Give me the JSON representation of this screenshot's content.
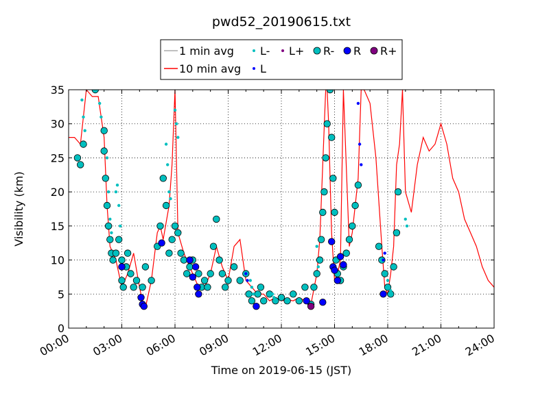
{
  "chart_data": {
    "type": "line",
    "title": "pwd52_20190615.txt",
    "xlabel": "Time on 2019-06-15 (JST)",
    "ylabel": "Visibility (km)",
    "xlim": [
      "00:00",
      "24:00"
    ],
    "ylim": [
      0,
      35
    ],
    "grid": true,
    "legend_position": "top",
    "x_ticks": [
      "00:00",
      "03:00",
      "06:00",
      "09:00",
      "12:00",
      "15:00",
      "18:00",
      "21:00",
      "24:00"
    ],
    "y_ticks": [
      0,
      5,
      10,
      15,
      20,
      25,
      30,
      35
    ],
    "legend": [
      {
        "label": "1 min avg",
        "kind": "line",
        "color": "#aaaaaa"
      },
      {
        "label": "10 min avg",
        "kind": "line",
        "color": "#ff0000"
      },
      {
        "label": "L-",
        "kind": "small-dot",
        "color": "#00bfbf"
      },
      {
        "label": "L",
        "kind": "small-dot",
        "color": "#0000ff"
      },
      {
        "label": "L+",
        "kind": "small-dot",
        "color": "#800080"
      },
      {
        "label": "R-",
        "kind": "large-dot",
        "color": "#00bfbf"
      },
      {
        "label": "R",
        "kind": "large-dot",
        "color": "#0000ff"
      },
      {
        "label": "R+",
        "kind": "large-dot",
        "color": "#800080"
      }
    ],
    "series": [
      {
        "name": "10 min avg",
        "color": "#ff0000",
        "x": [
          "00:00",
          "00:20",
          "00:40",
          "01:00",
          "01:20",
          "01:40",
          "02:00",
          "02:10",
          "02:20",
          "02:30",
          "02:40",
          "03:00",
          "03:20",
          "03:40",
          "04:00",
          "04:10",
          "04:20",
          "04:40",
          "05:00",
          "05:10",
          "05:20",
          "05:40",
          "05:50",
          "06:00",
          "06:10",
          "06:30",
          "07:00",
          "07:20",
          "07:40",
          "08:00",
          "08:20",
          "08:40",
          "09:00",
          "09:20",
          "09:40",
          "10:00",
          "10:20",
          "10:40",
          "11:00",
          "11:20",
          "11:40",
          "12:00",
          "12:20",
          "12:40",
          "13:00",
          "13:20",
          "13:40",
          "14:00",
          "14:10",
          "14:20",
          "14:30",
          "14:35",
          "14:40",
          "14:45",
          "14:50",
          "15:00",
          "15:10",
          "15:20",
          "15:30",
          "15:50",
          "16:00",
          "16:10",
          "16:20",
          "16:30",
          "16:40",
          "16:50",
          "17:00",
          "17:20",
          "17:40",
          "17:50",
          "18:00",
          "18:10",
          "18:20",
          "18:30",
          "18:40",
          "18:50",
          "19:00",
          "19:20",
          "19:40",
          "20:00",
          "20:20",
          "20:40",
          "21:00",
          "21:20",
          "21:40",
          "22:00",
          "22:20",
          "22:40",
          "23:00",
          "23:20",
          "23:40",
          "24:00"
        ],
        "values": [
          28,
          28,
          27,
          35,
          34,
          34,
          28,
          18,
          12,
          11,
          10,
          6,
          8,
          11,
          6,
          4,
          3,
          7,
          14,
          15,
          13,
          18,
          24,
          35,
          14,
          11,
          8,
          6,
          6,
          8,
          12,
          9,
          7,
          12,
          13,
          7,
          6,
          5,
          5,
          4,
          4.5,
          4,
          4.2,
          4,
          4.5,
          4,
          3.5,
          8,
          13,
          24,
          36,
          35,
          30,
          22,
          14,
          7,
          8,
          10,
          35,
          12,
          14,
          18,
          22,
          35,
          35,
          34,
          33,
          25,
          12,
          6,
          5,
          8,
          12,
          24,
          27,
          35,
          20,
          17,
          24,
          28,
          26,
          27,
          30,
          27,
          22,
          20,
          16,
          14,
          12,
          9,
          7,
          6
        ]
      }
    ],
    "markers": {
      "R-": [
        [
          "00:30",
          25
        ],
        [
          "00:40",
          24
        ],
        [
          "00:50",
          27
        ],
        [
          "01:30",
          35
        ],
        [
          "02:00",
          29
        ],
        [
          "02:00",
          26
        ],
        [
          "02:05",
          22
        ],
        [
          "02:10",
          18
        ],
        [
          "02:15",
          15
        ],
        [
          "02:20",
          13
        ],
        [
          "02:25",
          11
        ],
        [
          "02:30",
          10
        ],
        [
          "02:40",
          11
        ],
        [
          "02:50",
          13
        ],
        [
          "03:00",
          10
        ],
        [
          "03:00",
          7
        ],
        [
          "03:05",
          6
        ],
        [
          "03:15",
          9
        ],
        [
          "03:20",
          11
        ],
        [
          "03:30",
          8
        ],
        [
          "03:40",
          6
        ],
        [
          "03:50",
          7
        ],
        [
          "04:10",
          6
        ],
        [
          "04:20",
          9
        ],
        [
          "04:40",
          7
        ],
        [
          "05:00",
          12
        ],
        [
          "05:10",
          15
        ],
        [
          "05:20",
          22
        ],
        [
          "05:30",
          18
        ],
        [
          "05:40",
          11
        ],
        [
          "05:50",
          13
        ],
        [
          "06:00",
          15
        ],
        [
          "06:10",
          14
        ],
        [
          "06:20",
          11
        ],
        [
          "06:30",
          10
        ],
        [
          "06:40",
          8
        ],
        [
          "06:50",
          9
        ],
        [
          "07:00",
          10
        ],
        [
          "07:20",
          8
        ],
        [
          "07:30",
          6
        ],
        [
          "07:40",
          7
        ],
        [
          "07:50",
          6
        ],
        [
          "08:00",
          8
        ],
        [
          "08:10",
          12
        ],
        [
          "08:20",
          16
        ],
        [
          "08:30",
          10
        ],
        [
          "08:40",
          8
        ],
        [
          "08:50",
          6
        ],
        [
          "09:00",
          7
        ],
        [
          "09:20",
          9
        ],
        [
          "09:40",
          7
        ],
        [
          "10:00",
          8
        ],
        [
          "10:10",
          5
        ],
        [
          "10:20",
          4
        ],
        [
          "10:40",
          5
        ],
        [
          "10:50",
          6
        ],
        [
          "11:00",
          4
        ],
        [
          "11:20",
          5
        ],
        [
          "11:40",
          4
        ],
        [
          "12:00",
          4.5
        ],
        [
          "12:20",
          4
        ],
        [
          "12:40",
          5
        ],
        [
          "13:00",
          4
        ],
        [
          "13:20",
          6
        ],
        [
          "13:40",
          3.5
        ],
        [
          "13:50",
          6
        ],
        [
          "14:00",
          8
        ],
        [
          "14:10",
          10
        ],
        [
          "14:15",
          13
        ],
        [
          "14:20",
          17
        ],
        [
          "14:25",
          20
        ],
        [
          "14:30",
          25
        ],
        [
          "14:35",
          30
        ],
        [
          "14:45",
          35
        ],
        [
          "14:50",
          28
        ],
        [
          "14:55",
          22
        ],
        [
          "15:00",
          17
        ],
        [
          "15:05",
          10
        ],
        [
          "15:10",
          8
        ],
        [
          "15:20",
          7
        ],
        [
          "15:30",
          9
        ],
        [
          "15:40",
          11
        ],
        [
          "15:50",
          13
        ],
        [
          "16:00",
          15
        ],
        [
          "16:10",
          18
        ],
        [
          "16:20",
          21
        ],
        [
          "17:30",
          12
        ],
        [
          "17:40",
          10
        ],
        [
          "17:50",
          8
        ],
        [
          "18:00",
          6
        ],
        [
          "18:10",
          5
        ],
        [
          "18:20",
          9
        ],
        [
          "18:30",
          14
        ],
        [
          "18:35",
          20
        ]
      ],
      "R": [
        [
          "03:00",
          9
        ],
        [
          "04:05",
          4.5
        ],
        [
          "04:10",
          3.5
        ],
        [
          "04:15",
          3.2
        ],
        [
          "05:15",
          12.5
        ],
        [
          "06:50",
          10
        ],
        [
          "07:00",
          7.5
        ],
        [
          "07:10",
          9
        ],
        [
          "07:15",
          6
        ],
        [
          "07:20",
          5
        ],
        [
          "10:35",
          3.2
        ],
        [
          "13:25",
          4
        ],
        [
          "14:20",
          3.8
        ],
        [
          "14:50",
          12.7
        ],
        [
          "14:55",
          9
        ],
        [
          "15:00",
          8.5
        ],
        [
          "15:10",
          7
        ],
        [
          "15:20",
          10.5
        ],
        [
          "15:30",
          9.3
        ],
        [
          "17:45",
          5
        ]
      ],
      "R+": [
        [
          "13:40",
          3.2
        ]
      ],
      "L-": [
        [
          "00:45",
          33.5
        ],
        [
          "00:50",
          31
        ],
        [
          "00:55",
          29
        ],
        [
          "01:45",
          33
        ],
        [
          "01:50",
          31
        ],
        [
          "02:05",
          29
        ],
        [
          "02:10",
          25
        ],
        [
          "02:15",
          20
        ],
        [
          "02:20",
          16
        ],
        [
          "02:25",
          14
        ],
        [
          "02:40",
          20
        ],
        [
          "02:45",
          21
        ],
        [
          "02:50",
          18
        ],
        [
          "02:55",
          15
        ],
        [
          "05:30",
          27
        ],
        [
          "05:35",
          24
        ],
        [
          "05:40",
          20
        ],
        [
          "05:45",
          19
        ],
        [
          "06:00",
          32
        ],
        [
          "06:05",
          30
        ],
        [
          "06:10",
          28
        ],
        [
          "10:15",
          7
        ],
        [
          "10:20",
          6
        ],
        [
          "10:25",
          5
        ],
        [
          "11:30",
          5
        ],
        [
          "11:35",
          4.5
        ],
        [
          "14:00",
          12
        ],
        [
          "14:05",
          9
        ],
        [
          "17:55",
          8
        ],
        [
          "18:00",
          7
        ],
        [
          "18:05",
          6
        ],
        [
          "18:10",
          5.5
        ],
        [
          "19:00",
          16
        ],
        [
          "19:05",
          15
        ]
      ],
      "L": [
        [
          "10:00",
          8
        ],
        [
          "10:05",
          7
        ],
        [
          "16:20",
          33
        ],
        [
          "16:25",
          27
        ],
        [
          "16:30",
          24
        ],
        [
          "17:45",
          10
        ],
        [
          "17:50",
          11
        ]
      ]
    }
  }
}
